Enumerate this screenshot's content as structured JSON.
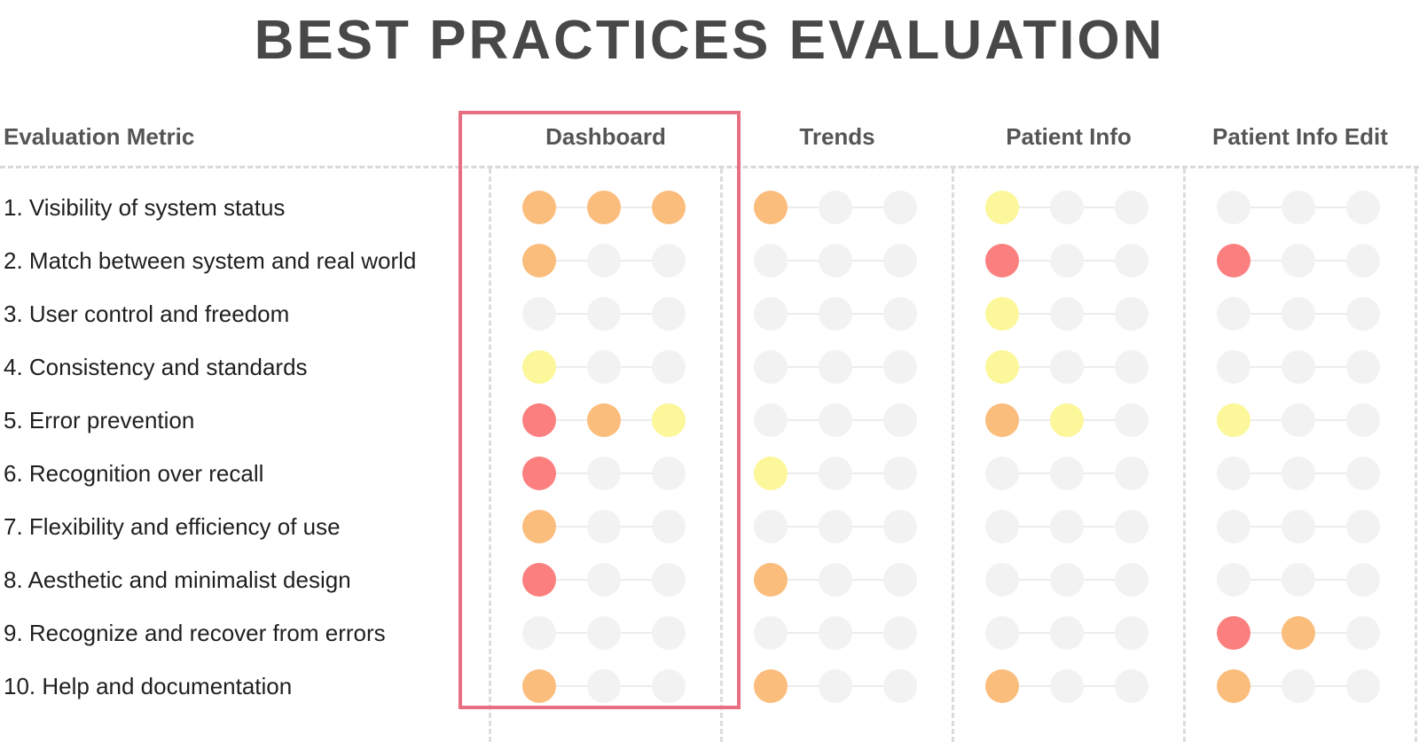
{
  "title": "BEST PRACTICES EVALUATION",
  "colors": {
    "none": "#f2f2f2",
    "yellow": "#fbf79a",
    "orange": "#fbbd7c",
    "red": "#fb7f7f",
    "highlight": "#e86f82"
  },
  "chart_data": {
    "type": "table",
    "title": "BEST PRACTICES EVALUATION",
    "row_header": "Evaluation Metric",
    "columns": [
      "Dashboard",
      "Trends",
      "Patient Info",
      "Patient Info Edit"
    ],
    "highlighted_column": "Dashboard",
    "dots_per_cell": 3,
    "rows": [
      "1. Visibility of system status",
      "2. Match between system and real world",
      "3. User control and freedom",
      "4. Consistency and standards",
      "5. Error prevention",
      "6. Recognition over recall",
      "7. Flexibility and efficiency of use",
      "8. Aesthetic and minimalist design",
      "9. Recognize and recover from errors",
      "10. Help and documentation"
    ],
    "values": [
      [
        [
          "orange",
          "orange",
          "orange"
        ],
        [
          "orange",
          "none",
          "none"
        ],
        [
          "yellow",
          "none",
          "none"
        ],
        [
          "none",
          "none",
          "none"
        ]
      ],
      [
        [
          "orange",
          "none",
          "none"
        ],
        [
          "none",
          "none",
          "none"
        ],
        [
          "red",
          "none",
          "none"
        ],
        [
          "red",
          "none",
          "none"
        ]
      ],
      [
        [
          "none",
          "none",
          "none"
        ],
        [
          "none",
          "none",
          "none"
        ],
        [
          "yellow",
          "none",
          "none"
        ],
        [
          "none",
          "none",
          "none"
        ]
      ],
      [
        [
          "yellow",
          "none",
          "none"
        ],
        [
          "none",
          "none",
          "none"
        ],
        [
          "yellow",
          "none",
          "none"
        ],
        [
          "none",
          "none",
          "none"
        ]
      ],
      [
        [
          "red",
          "orange",
          "yellow"
        ],
        [
          "none",
          "none",
          "none"
        ],
        [
          "orange",
          "yellow",
          "none"
        ],
        [
          "yellow",
          "none",
          "none"
        ]
      ],
      [
        [
          "red",
          "none",
          "none"
        ],
        [
          "yellow",
          "none",
          "none"
        ],
        [
          "none",
          "none",
          "none"
        ],
        [
          "none",
          "none",
          "none"
        ]
      ],
      [
        [
          "orange",
          "none",
          "none"
        ],
        [
          "none",
          "none",
          "none"
        ],
        [
          "none",
          "none",
          "none"
        ],
        [
          "none",
          "none",
          "none"
        ]
      ],
      [
        [
          "red",
          "none",
          "none"
        ],
        [
          "orange",
          "none",
          "none"
        ],
        [
          "none",
          "none",
          "none"
        ],
        [
          "none",
          "none",
          "none"
        ]
      ],
      [
        [
          "none",
          "none",
          "none"
        ],
        [
          "none",
          "none",
          "none"
        ],
        [
          "none",
          "none",
          "none"
        ],
        [
          "red",
          "orange",
          "none"
        ]
      ],
      [
        [
          "orange",
          "none",
          "none"
        ],
        [
          "orange",
          "none",
          "none"
        ],
        [
          "orange",
          "none",
          "none"
        ],
        [
          "orange",
          "none",
          "none"
        ]
      ]
    ]
  }
}
